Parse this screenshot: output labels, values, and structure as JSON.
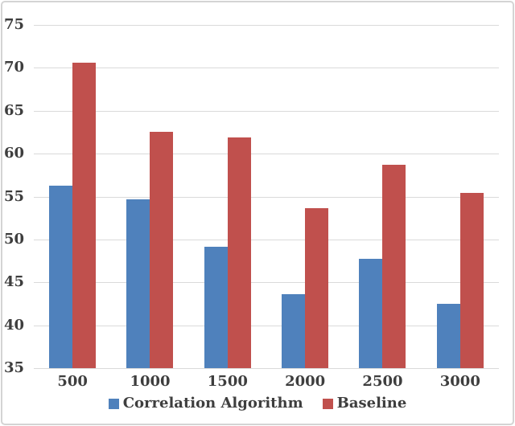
{
  "chart_data": {
    "type": "bar",
    "title": "",
    "xlabel": "",
    "ylabel": "",
    "categories": [
      "500",
      "1000",
      "1500",
      "2000",
      "2500",
      "3000"
    ],
    "series": [
      {
        "name": "Correlation Algorithm",
        "color": "#4F81BC",
        "values": [
          56.3,
          54.7,
          49.1,
          43.6,
          47.7,
          42.5
        ]
      },
      {
        "name": "Baseline",
        "color": "#C0504D",
        "values": [
          70.6,
          62.5,
          61.9,
          53.6,
          58.7,
          55.4
        ]
      }
    ],
    "ylim": [
      35,
      75
    ],
    "yticks": [
      35,
      40,
      45,
      50,
      55,
      60,
      65,
      70,
      75
    ],
    "grid": true,
    "legend_position": "bottom"
  },
  "colors": {
    "background": "#FFFFFF",
    "border": "#D4D4D4",
    "gridline": "#DADADA",
    "axis_label": "#3E3E3E"
  }
}
